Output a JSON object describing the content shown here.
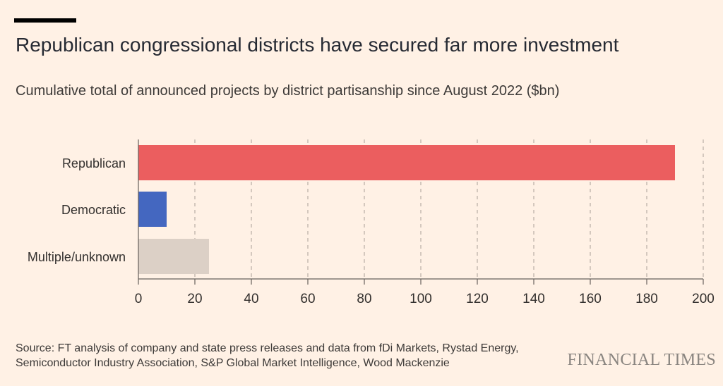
{
  "title": "Republican congressional districts have secured far more investment",
  "subtitle": "Cumulative total of announced projects by district partisanship since August 2022 ($bn)",
  "source": "Source: FT analysis of company and state press releases and data from fDi Markets, Rystad Energy, Semiconductor Industry Association, S&P Global Market Intelligence, Wood Mackenzie",
  "brand": "FINANCIAL TIMES",
  "chart_data": {
    "type": "bar",
    "orientation": "horizontal",
    "categories": [
      "Republican",
      "Democratic",
      "Multiple/unknown"
    ],
    "values": [
      190,
      10,
      25
    ],
    "colors": [
      "#eb5e5f",
      "#4467c0",
      "#dcd0c6"
    ],
    "xlim": [
      0,
      200
    ],
    "xticks": [
      "0",
      "20",
      "40",
      "60",
      "80",
      "100",
      "120",
      "140",
      "160",
      "180",
      "200"
    ],
    "grid": true,
    "title": "Republican congressional districts have secured far more investment",
    "subtitle": "Cumulative total of announced projects by district partisanship since August 2022 ($bn)",
    "xlabel": "",
    "ylabel": ""
  }
}
